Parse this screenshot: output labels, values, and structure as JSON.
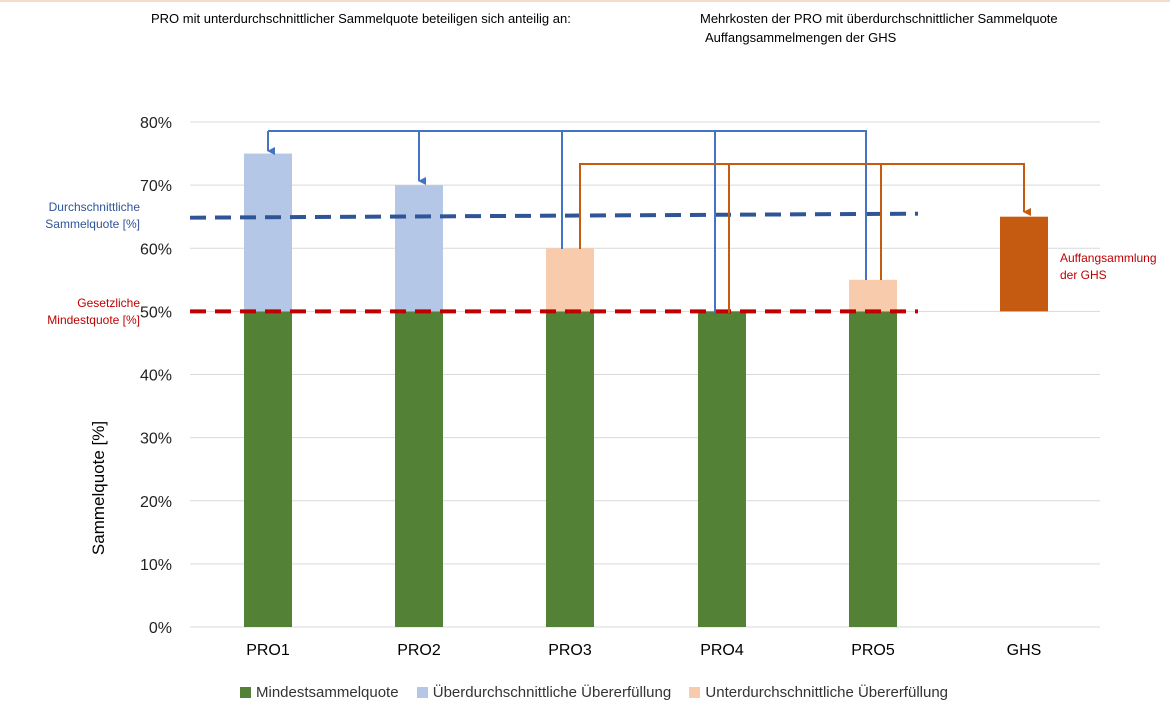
{
  "header": {
    "left_text": "PRO mit unterdurchschnittlicher Sammelquote beteiligen sich anteilig an:",
    "right_line1": "Mehrkosten der PRO mit überdurchschnittlicher Sammelquote",
    "right_line2": "Auffangsammelmengen der GHS"
  },
  "annotations": {
    "avg_line1": "Durchschnittliche",
    "avg_line2": "Sammelquote [%]",
    "min_line1": "Gesetzliche",
    "min_line2": "Mindestquote [%]",
    "ghs_line1": "Auffangsammlung",
    "ghs_line2": "der GHS"
  },
  "colors": {
    "min": "#538135",
    "above": "#b4c7e7",
    "below": "#f8cbad",
    "ghs": "#c55a11",
    "avg_line": "#2f5597",
    "min_line": "#c00000",
    "blue_connector": "#4472c4",
    "orange_connector": "#c55a11",
    "annotation_blue": "#2f5597",
    "annotation_red": "#c00000"
  },
  "chart_data": {
    "type": "bar",
    "stacked": true,
    "categories": [
      "PRO1",
      "PRO2",
      "PRO3",
      "PRO4",
      "PRO5",
      "GHS"
    ],
    "series": [
      {
        "name": "Mindestsammelquote",
        "values": [
          50,
          50,
          50,
          50,
          50,
          0
        ]
      },
      {
        "name": "Überdurchschnittliche Übererfüllung",
        "values": [
          25,
          20,
          0,
          0,
          0,
          0
        ]
      },
      {
        "name": "Unterdurchschnittliche Übererfüllung",
        "values": [
          0,
          0,
          10,
          0,
          5,
          0
        ]
      },
      {
        "name": "",
        "values": [
          0,
          0,
          0,
          0,
          0,
          15
        ]
      }
    ],
    "ghs_base": 50,
    "ylabel": "Sammelquote [%]",
    "ylim": [
      0,
      80
    ],
    "yticks": [
      0,
      10,
      20,
      30,
      40,
      50,
      60,
      70,
      80
    ],
    "ytick_labels": [
      "0%",
      "10%",
      "20%",
      "30%",
      "40%",
      "50%",
      "60%",
      "70%",
      "80%"
    ],
    "reference_lines": [
      {
        "label": "Durchschnittliche Sammelquote [%]",
        "value": 65,
        "style": "dashed"
      },
      {
        "label": "Gesetzliche Mindestquote [%]",
        "value": 50,
        "style": "dashed"
      }
    ],
    "grid": true,
    "legend": "bottom",
    "legend_entries": [
      "Mindestsammelquote",
      "Überdurchschnittliche Übererfüllung",
      "Unterdurchschnittliche Übererfüllung"
    ]
  }
}
